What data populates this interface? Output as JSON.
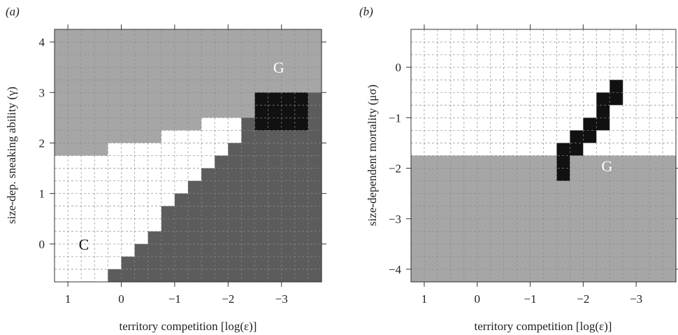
{
  "colors": {
    "C": "#a6a6a6",
    "N": "#ffffff",
    "G": "#5c5c5c",
    "M": "#111111",
    "grid": "#8a8a8a",
    "axis": "#333333"
  },
  "chart_data": [
    {
      "type": "heatmap",
      "panel_label": "(a)",
      "xlabel": "territory competition [log(ε)]",
      "ylabel": "size-dep. sneaking ability (γ)",
      "xlim": [
        1.25,
        -3.75
      ],
      "ylim": [
        4.25,
        -0.75
      ],
      "x_reversed": true,
      "y_reversed": true,
      "x_ticks": [
        1,
        0,
        -1,
        -2,
        -3
      ],
      "x_tick_labels": [
        "1",
        "0",
        "−1",
        "−2",
        "−3"
      ],
      "y_ticks": [
        0,
        1,
        2,
        3,
        4
      ],
      "y_tick_labels": [
        "0",
        "1",
        "2",
        "3",
        "4"
      ],
      "grid": true,
      "region_labels": [
        {
          "text": "C",
          "x": 0.7,
          "y": 0.0,
          "color": "#111111"
        },
        {
          "text": "G",
          "x": -2.95,
          "y": 3.5,
          "color": "#ffffff"
        }
      ],
      "regions": {
        "C": "upper-left band (cooperative / intermediate gray)",
        "N": "white wedge between C and G",
        "G": "dark gray lower-right region",
        "M": "black cluster near x −2.5 to −3.6, y 0.6 to 1.4"
      }
    },
    {
      "type": "heatmap",
      "panel_label": "(b)",
      "xlabel": "territory competition [log(ε)]",
      "ylabel": "size-dependent mortality (μσ)",
      "xlim": [
        1.25,
        -3.75
      ],
      "ylim": [
        0.75,
        -4.25
      ],
      "x_reversed": true,
      "x_ticks": [
        1,
        0,
        -1,
        -2,
        -3
      ],
      "x_tick_labels": [
        "1",
        "0",
        "−1",
        "−2",
        "−3"
      ],
      "y_ticks": [
        0,
        -1,
        -2,
        -3,
        -4
      ],
      "y_tick_labels": [
        "0",
        "−1",
        "−2",
        "−3",
        "−4"
      ],
      "grid": true,
      "region_labels": [
        {
          "text": "G",
          "x": -2.45,
          "y": -1.95,
          "color": "#ffffff"
        }
      ],
      "regions": {
        "N": "upper white region",
        "C": "lower light gray region",
        "G": "dark gray diagonal band at right",
        "M": "black diagonal band from x −1.6 to −2.7"
      }
    }
  ]
}
